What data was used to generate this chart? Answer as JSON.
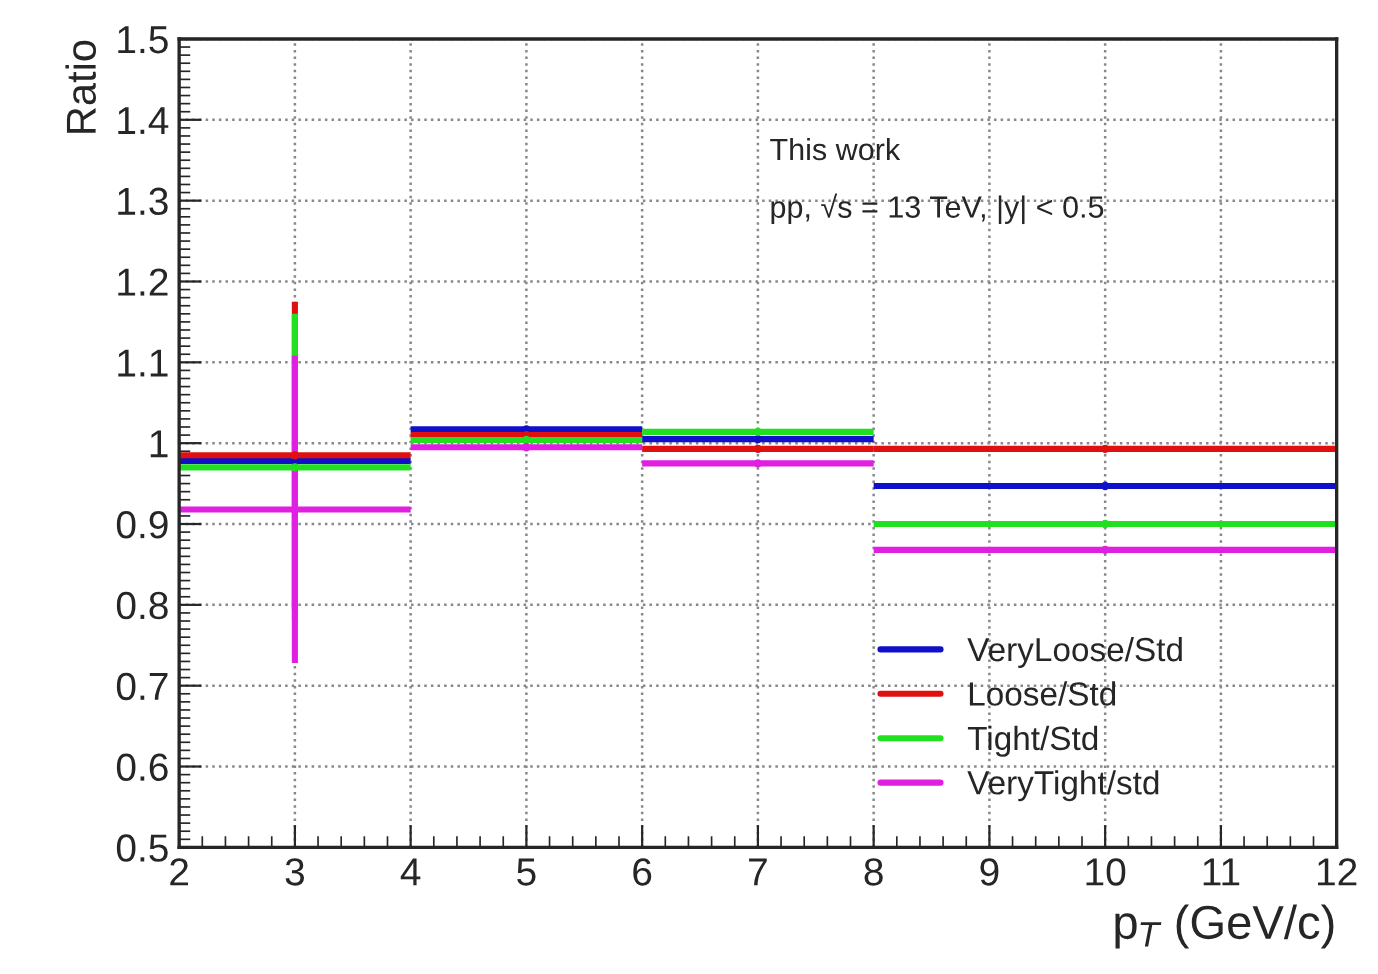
{
  "chart_data": {
    "type": "scatter",
    "xlabel": "p$_{T}$ (GeV/c)",
    "ylabel": "Ratio",
    "annotations": [
      "This work",
      "pp, √s = 13 TeV, |y| < 0.5"
    ],
    "x": [
      3,
      5,
      7,
      10
    ],
    "series": [
      {
        "name": "VeryLoose/Std",
        "color": "#1010c8",
        "values": [
          0.978,
          1.017,
          1.005,
          0.947
        ],
        "xerrors": [
          1,
          1,
          1,
          2
        ]
      },
      {
        "name": "Loose/Std",
        "color": "#e01010",
        "values": [
          0.985,
          1.01,
          0.993,
          0.993
        ],
        "xerrors": [
          1,
          1,
          1,
          2
        ],
        "errors": [
          0.19,
          null,
          null,
          null
        ]
      },
      {
        "name": "Tight/Std",
        "color": "#20e020",
        "values": [
          0.97,
          1.004,
          1.014,
          0.9
        ],
        "xerrors": [
          1,
          1,
          1,
          2
        ],
        "errors": [
          0.19,
          null,
          null,
          null
        ]
      },
      {
        "name": "VeryTight/std",
        "color": "#e020e0",
        "values": [
          0.918,
          0.995,
          0.975,
          0.868
        ],
        "xerrors": [
          1,
          1,
          1,
          2
        ],
        "errors": [
          0.19,
          null,
          null,
          null
        ]
      }
    ],
    "marker": "circle",
    "xlim": [
      2,
      12
    ],
    "xticks": [
      2,
      3,
      4,
      5,
      6,
      7,
      8,
      9,
      10,
      11,
      12
    ],
    "ylim": [
      0.5,
      1.5
    ],
    "yticks": [
      0.5,
      0.6,
      0.7,
      0.8,
      0.9,
      1,
      1.1,
      1.2,
      1.3,
      1.4,
      1.5
    ],
    "grid": true,
    "legend": "bottom right"
  }
}
